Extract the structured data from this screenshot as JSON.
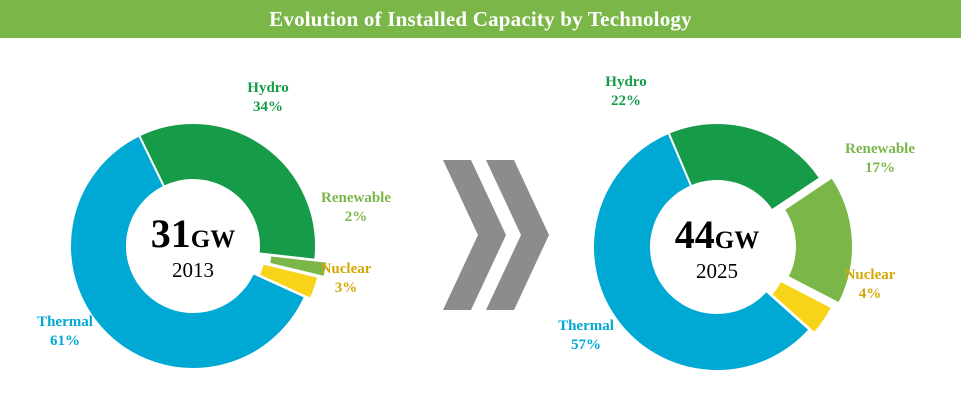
{
  "banner": {
    "title": "Evolution of Installed Capacity by Technology"
  },
  "colors": {
    "banner": "#7ab648",
    "Hydro": "#169b48",
    "Renewable": "#7ab648",
    "Nuclear": "#f7d417",
    "Thermal": "#00a9d3",
    "arrow": "#8c8c8c",
    "label_nuclear": "#d4a800"
  },
  "arrow_icon": "double-chevron-right-icon",
  "chart_data": [
    {
      "type": "pie",
      "variant": "donut",
      "center": {
        "value": "31",
        "unit": "GW",
        "year": "2013"
      },
      "slices": [
        {
          "name": "Hydro",
          "value": 34,
          "label": "34%"
        },
        {
          "name": "Renewable",
          "value": 2,
          "label": "2%"
        },
        {
          "name": "Nuclear",
          "value": 3,
          "label": "3%"
        },
        {
          "name": "Thermal",
          "value": 61,
          "label": "61%"
        }
      ]
    },
    {
      "type": "pie",
      "variant": "donut",
      "center": {
        "value": "44",
        "unit": "GW",
        "year": "2025"
      },
      "slices": [
        {
          "name": "Hydro",
          "value": 22,
          "label": "22%"
        },
        {
          "name": "Renewable",
          "value": 17,
          "label": "17%"
        },
        {
          "name": "Nuclear",
          "value": 4,
          "label": "4%"
        },
        {
          "name": "Thermal",
          "value": 57,
          "label": "57%"
        }
      ]
    }
  ]
}
